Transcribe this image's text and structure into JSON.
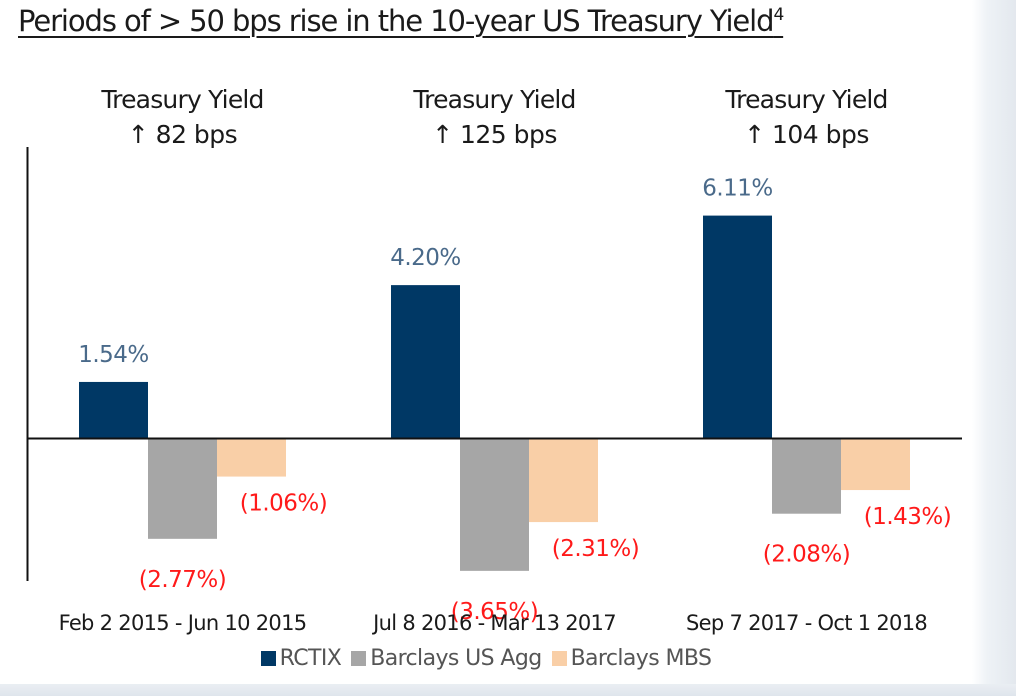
{
  "chart_data": {
    "type": "bar",
    "title": "Periods of > 50 bps rise in the 10-year US Treasury Yield",
    "title_superscript": "4",
    "categories": [
      "Feb 2 2015 - Jun 10 2015",
      "Jul 8 2016 - Mar 13 2017",
      "Sep 7 2017 - Oct 1 2018"
    ],
    "group_annotations": [
      {
        "line1": "Treasury Yield",
        "line2": "↑ 82 bps"
      },
      {
        "line1": "Treasury Yield",
        "line2": "↑ 125 bps"
      },
      {
        "line1": "Treasury Yield",
        "line2": "↑ 104 bps"
      }
    ],
    "series": [
      {
        "name": "RCTIX",
        "color": "#003865",
        "label_color": "#4a6a8a",
        "values": [
          1.54,
          4.2,
          6.11
        ],
        "labels": [
          "1.54%",
          "4.20%",
          "6.11%"
        ]
      },
      {
        "name": "Barclays US Agg",
        "color": "#a6a6a6",
        "label_color": "#ff1a1a",
        "values": [
          -2.77,
          -3.65,
          -2.08
        ],
        "labels": [
          "(2.77%)",
          "(3.65%)",
          "(2.08%)"
        ]
      },
      {
        "name": "Barclays MBS",
        "color": "#f9cfa7",
        "label_color": "#ff1a1a",
        "values": [
          -1.06,
          -2.31,
          -1.43
        ],
        "labels": [
          "(1.06%)",
          "(2.31%)",
          "(1.43%)"
        ]
      }
    ],
    "xlabel": "",
    "ylabel": "",
    "ylim": [
      -4.0,
      8.0
    ],
    "grid": false,
    "legend_position": "bottom"
  }
}
